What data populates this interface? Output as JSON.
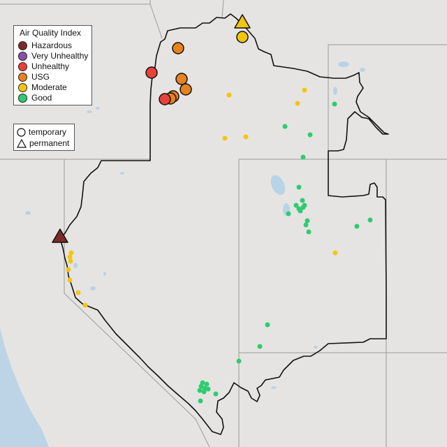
{
  "legend": {
    "title": "Air Quality Index",
    "categories": [
      {
        "label": "Hazardous",
        "color": "#7e2a2a"
      },
      {
        "label": "Very Unhealthy",
        "color": "#8a4fa8"
      },
      {
        "label": "Unhealthy",
        "color": "#e8413a"
      },
      {
        "label": "USG",
        "color": "#e8821e"
      },
      {
        "label": "Moderate",
        "color": "#f2c511"
      },
      {
        "label": "Good",
        "color": "#2ecc71"
      }
    ]
  },
  "type_legend": {
    "temporary_label": "temporary",
    "permanent_label": "permanent",
    "temporary_icon": "circle-icon",
    "permanent_icon": "triangle-icon"
  },
  "colors": {
    "background": "#e6e4e2",
    "boundary": "#111111",
    "state_lines": "#9a9a9a",
    "water": "#b9d3e6"
  }
}
